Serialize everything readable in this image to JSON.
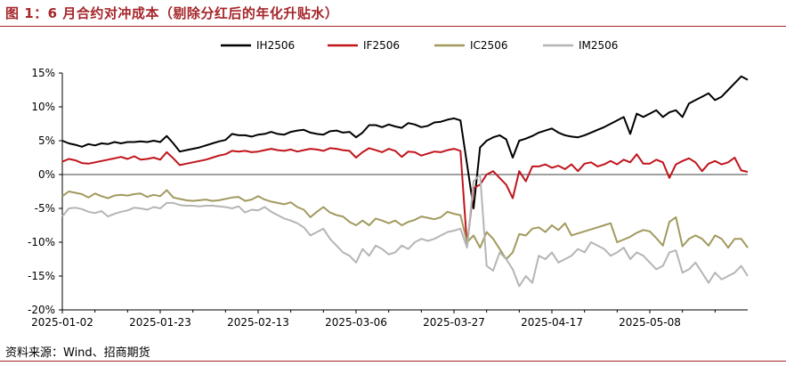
{
  "header": {
    "title": "图 1：6 月合约对冲成本（剔除分红后的年化升贴水）"
  },
  "footer": {
    "source": "资料来源：Wind、招商期货"
  },
  "chart_data": {
    "type": "line",
    "title": "图 1：6 月合约对冲成本（剔除分红后的年化升贴水）",
    "xlabel": "",
    "ylabel": "",
    "ylim": [
      -20,
      15
    ],
    "yticks": [
      "15%",
      "10%",
      "5%",
      "0%",
      "-5%",
      "-10%",
      "-15%",
      "-20%"
    ],
    "ytick_values": [
      15,
      10,
      5,
      0,
      -5,
      -10,
      -15,
      -20
    ],
    "xticks": [
      "2025-01-02",
      "2025-01-23",
      "2025-02-13",
      "2025-03-06",
      "2025-03-27",
      "2025-04-17",
      "2025-05-08"
    ],
    "xtick_positions": [
      0,
      15,
      30,
      45,
      60,
      75,
      90
    ],
    "xrange": [
      0,
      105
    ],
    "legend_position": "top-center",
    "grid": false,
    "series": [
      {
        "name": "IH2506",
        "color": "#000000",
        "values": [
          5.0,
          4.6,
          4.4,
          4.1,
          4.5,
          4.3,
          4.6,
          4.5,
          4.8,
          4.6,
          4.8,
          4.8,
          4.9,
          4.8,
          5.0,
          4.8,
          5.7,
          4.6,
          3.4,
          3.6,
          3.8,
          4.0,
          4.3,
          4.6,
          4.9,
          5.1,
          6.0,
          5.8,
          5.8,
          5.6,
          5.9,
          6.0,
          6.3,
          6.0,
          5.9,
          6.3,
          6.5,
          6.6,
          6.2,
          6.0,
          5.9,
          6.4,
          6.5,
          6.2,
          6.3,
          5.5,
          6.2,
          7.3,
          7.3,
          7.0,
          7.4,
          7.1,
          6.9,
          7.6,
          7.4,
          7.0,
          7.2,
          7.7,
          7.8,
          8.1,
          8.3,
          8.0,
          1.5,
          -5.0,
          4.0,
          5.0,
          5.5,
          5.8,
          5.2,
          2.5,
          5.0,
          5.3,
          5.7,
          6.2,
          6.5,
          6.8,
          6.2,
          5.8,
          5.6,
          5.5,
          5.8,
          6.2,
          6.6,
          7.0,
          7.5,
          8.0,
          8.5,
          6.0,
          9.0,
          8.5,
          9.0,
          9.5,
          8.5,
          9.2,
          9.5,
          8.5,
          10.5,
          11.0,
          11.5,
          12.0,
          11.0,
          11.5,
          12.5,
          13.5,
          14.5,
          14.0
        ]
      },
      {
        "name": "IF2506",
        "color": "#c0141b",
        "values": [
          1.9,
          2.3,
          2.1,
          1.7,
          1.6,
          1.8,
          2.0,
          2.2,
          2.4,
          2.6,
          2.3,
          2.7,
          2.2,
          2.3,
          2.5,
          2.2,
          3.3,
          2.4,
          1.4,
          1.6,
          1.8,
          2.0,
          2.2,
          2.5,
          2.8,
          3.0,
          3.5,
          3.4,
          3.5,
          3.3,
          3.4,
          3.6,
          3.8,
          3.6,
          3.5,
          3.7,
          3.4,
          3.6,
          3.8,
          3.7,
          3.5,
          3.9,
          3.8,
          3.6,
          3.5,
          2.5,
          3.3,
          3.9,
          3.6,
          3.3,
          3.8,
          3.5,
          2.6,
          3.4,
          3.3,
          2.8,
          3.1,
          3.4,
          3.3,
          3.6,
          3.8,
          3.5,
          -10.5,
          -2.0,
          -1.5,
          0.0,
          0.5,
          -0.5,
          -1.5,
          -3.5,
          0.5,
          -1.0,
          1.2,
          1.2,
          1.5,
          1.0,
          1.3,
          0.8,
          1.5,
          0.5,
          1.6,
          1.8,
          1.2,
          1.5,
          2.0,
          1.5,
          2.2,
          1.8,
          3.0,
          1.6,
          1.6,
          2.2,
          1.8,
          -0.5,
          1.5,
          2.0,
          2.4,
          1.8,
          0.5,
          1.6,
          2.0,
          1.5,
          1.8,
          2.5,
          0.6,
          0.4
        ]
      },
      {
        "name": "IC2506",
        "color": "#a19a5e",
        "values": [
          -3.2,
          -2.5,
          -2.7,
          -2.9,
          -3.4,
          -2.8,
          -3.2,
          -3.5,
          -3.1,
          -3.0,
          -3.1,
          -2.9,
          -2.8,
          -3.3,
          -3.0,
          -3.2,
          -2.3,
          -3.4,
          -3.6,
          -3.8,
          -3.9,
          -3.8,
          -3.7,
          -3.9,
          -3.8,
          -3.6,
          -3.4,
          -3.3,
          -3.9,
          -3.7,
          -3.2,
          -3.7,
          -4.0,
          -4.2,
          -4.4,
          -4.1,
          -4.8,
          -5.2,
          -6.3,
          -5.5,
          -4.8,
          -5.6,
          -6.0,
          -6.2,
          -7.0,
          -7.5,
          -6.8,
          -7.5,
          -6.5,
          -6.8,
          -7.2,
          -6.8,
          -7.5,
          -7.0,
          -6.7,
          -6.2,
          -6.4,
          -6.6,
          -6.3,
          -5.5,
          -5.8,
          -6.0,
          -10.0,
          -9.0,
          -10.8,
          -8.5,
          -9.5,
          -11.0,
          -12.5,
          -11.5,
          -8.8,
          -9.0,
          -8.0,
          -7.8,
          -8.5,
          -7.5,
          -8.2,
          -7.2,
          -9.0,
          -8.7,
          -8.4,
          -8.1,
          -7.8,
          -7.5,
          -7.2,
          -10.0,
          -9.6,
          -9.2,
          -8.6,
          -8.2,
          -8.4,
          -9.4,
          -10.5,
          -7.0,
          -6.3,
          -10.6,
          -9.5,
          -9.0,
          -9.5,
          -10.5,
          -9.0,
          -9.5,
          -10.8,
          -9.5,
          -9.5,
          -10.8
        ]
      },
      {
        "name": "IM2506",
        "color": "#b5b5b5",
        "values": [
          -6.2,
          -5.0,
          -4.9,
          -5.1,
          -5.5,
          -5.7,
          -5.4,
          -6.2,
          -5.8,
          -5.5,
          -5.3,
          -4.9,
          -5.0,
          -5.2,
          -4.8,
          -5.0,
          -4.2,
          -4.2,
          -4.5,
          -4.6,
          -4.6,
          -4.7,
          -4.6,
          -4.6,
          -4.7,
          -4.8,
          -5.0,
          -4.7,
          -5.6,
          -5.2,
          -5.3,
          -4.8,
          -5.5,
          -6.0,
          -6.5,
          -6.8,
          -7.2,
          -7.8,
          -9.0,
          -8.5,
          -8.0,
          -9.5,
          -10.5,
          -11.5,
          -12.0,
          -13.0,
          -11.0,
          -12.0,
          -10.5,
          -11.0,
          -11.8,
          -11.5,
          -10.5,
          -11.0,
          -10.0,
          -9.5,
          -9.8,
          -9.5,
          -9.0,
          -8.5,
          -8.3,
          -8.0,
          -10.8,
          -1.0,
          0.0,
          -13.5,
          -14.2,
          -11.5,
          -12.5,
          -14.0,
          -16.5,
          -15.0,
          -16.0,
          -12.0,
          -12.5,
          -11.5,
          -13.0,
          -12.5,
          -12.0,
          -11.0,
          -11.5,
          -10.0,
          -10.5,
          -11.0,
          -12.0,
          -11.5,
          -10.8,
          -12.5,
          -11.5,
          -12.0,
          -13.0,
          -14.0,
          -13.5,
          -11.5,
          -11.2,
          -14.5,
          -14.0,
          -13.0,
          -14.5,
          -16.0,
          -14.5,
          -15.5,
          -15.0,
          -14.5,
          -13.5,
          -15.0
        ]
      }
    ]
  }
}
